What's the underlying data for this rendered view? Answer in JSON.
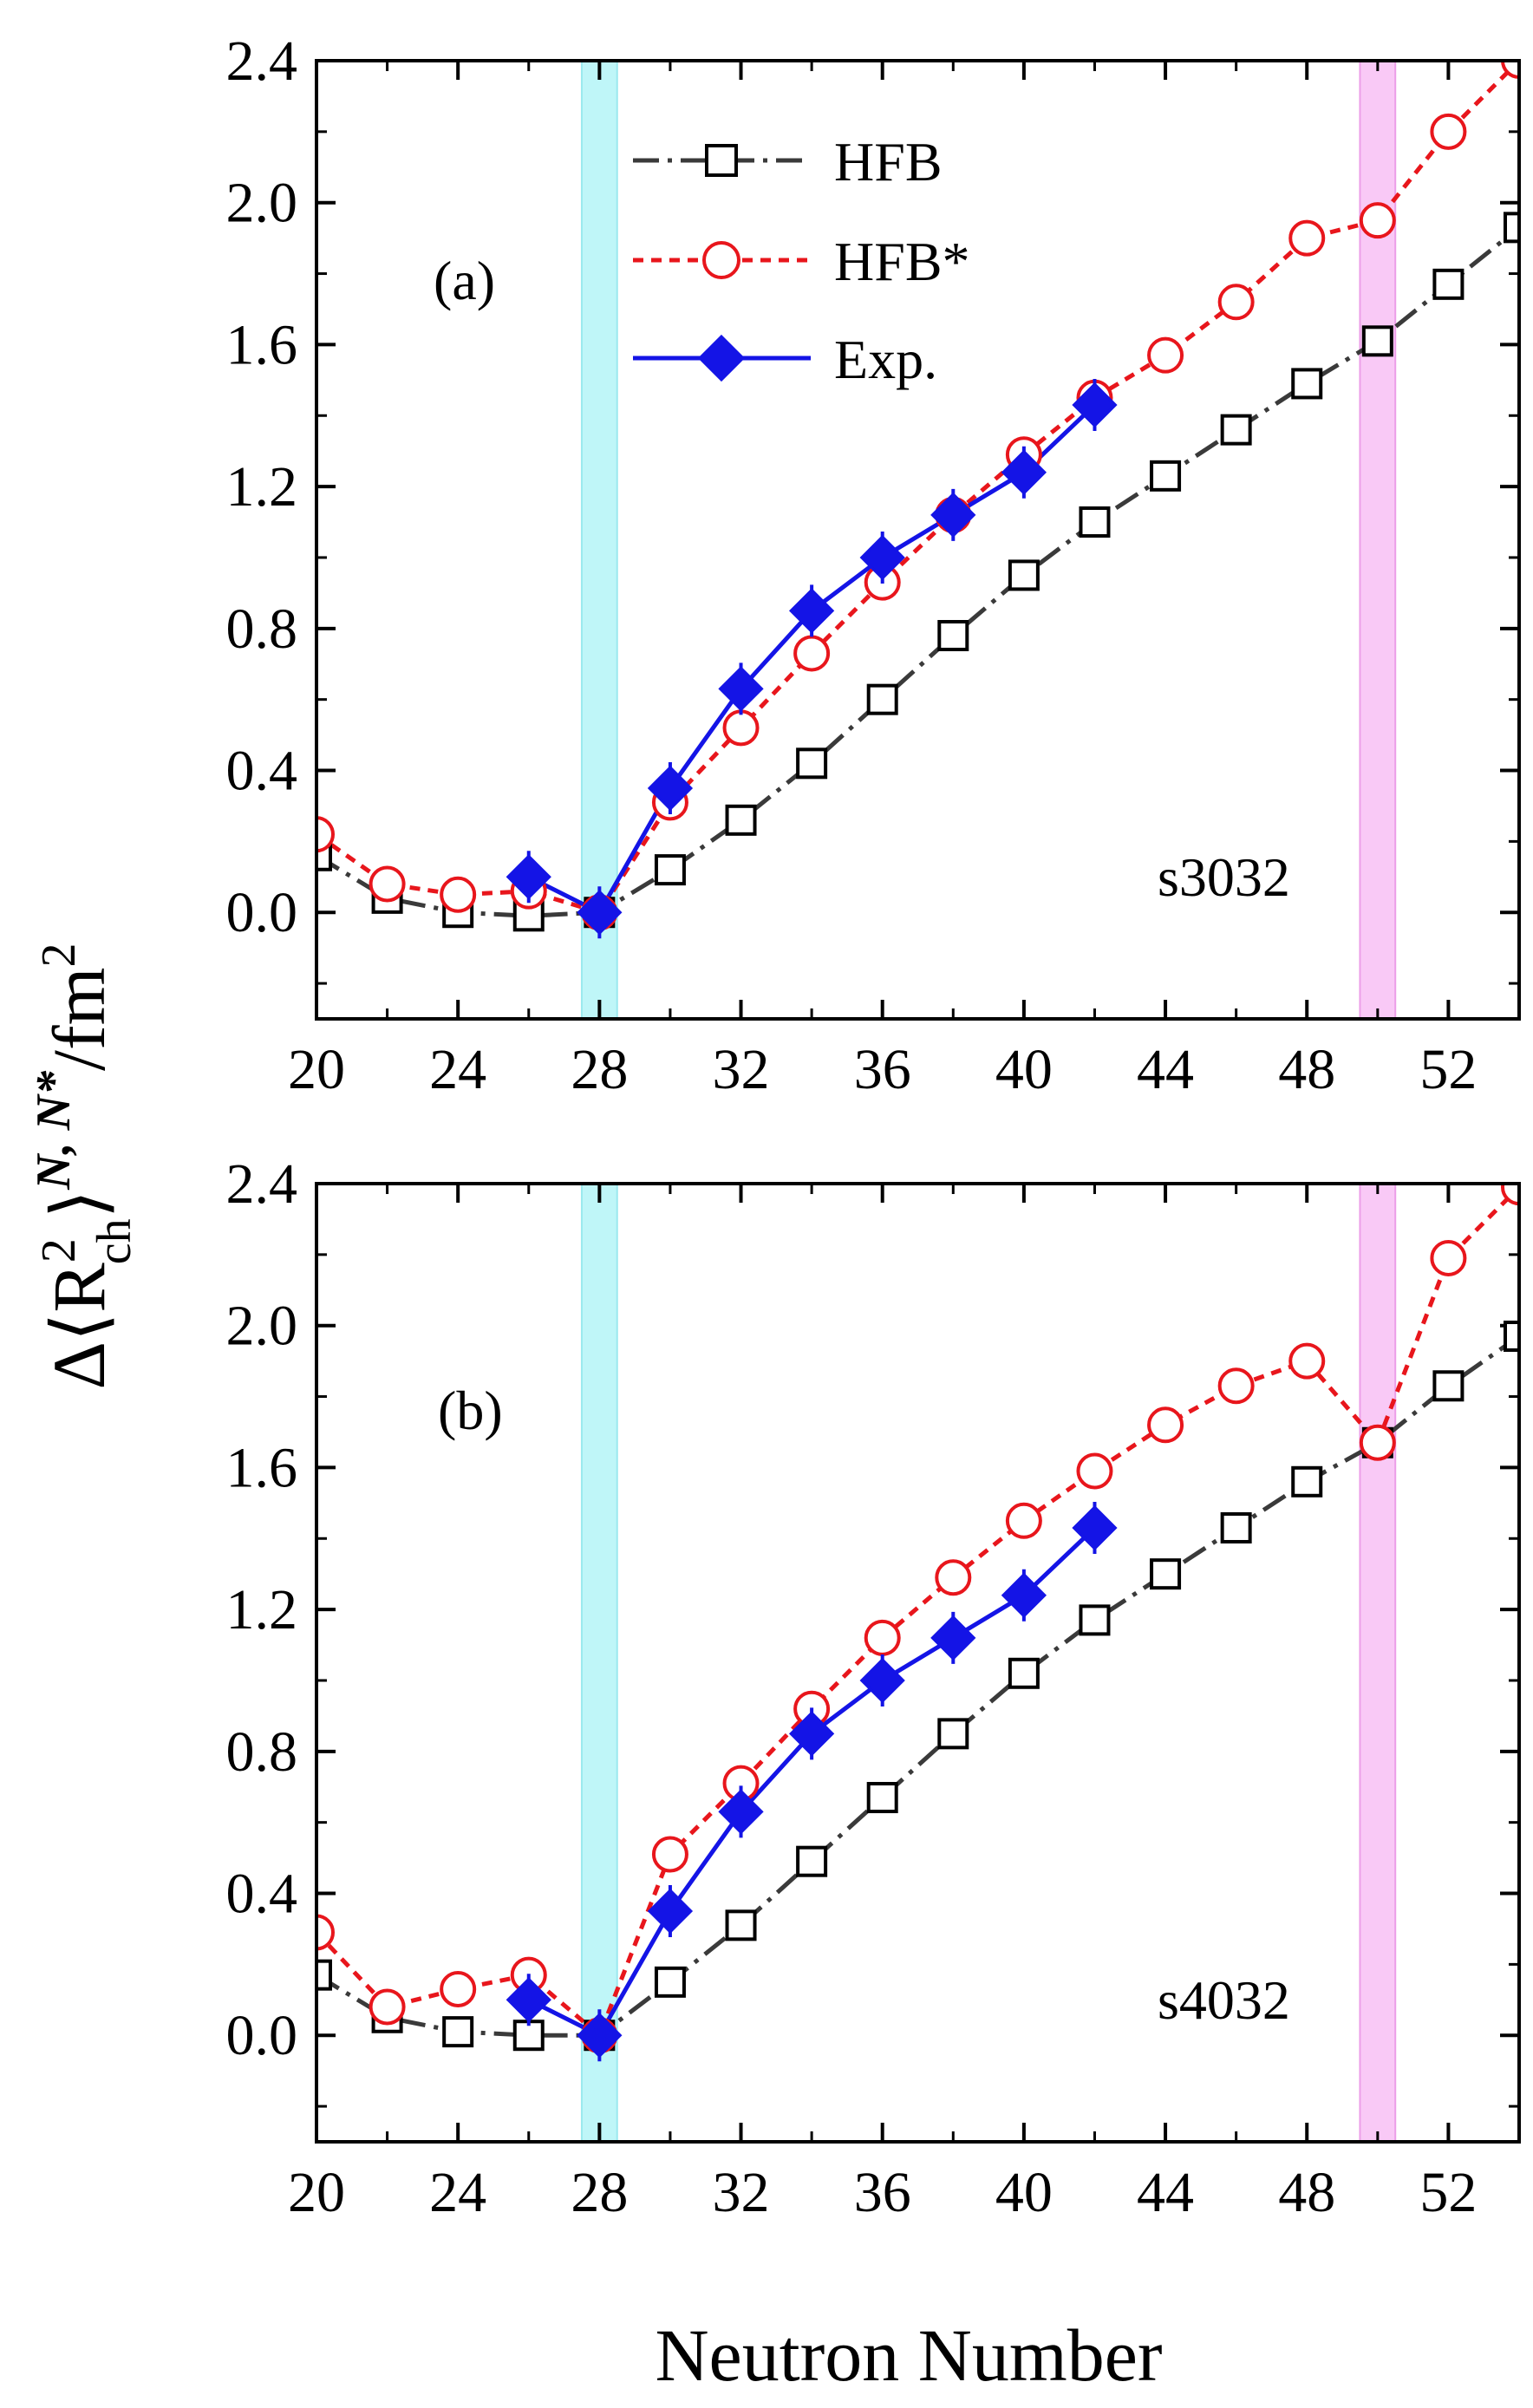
{
  "figure": {
    "xlabel": "Neutron Number",
    "ylabel": {
      "delta": "Δ",
      "open": "⟨",
      "base": "R",
      "sup": "2",
      "sub": "ch",
      "close": "⟩",
      "superscript": "N, N*",
      "unit": "/fm",
      "unit_sup": "2"
    },
    "x_ticks": [
      "20",
      "24",
      "28",
      "32",
      "36",
      "40",
      "44",
      "48",
      "52"
    ],
    "y_ticks": [
      "0.0",
      "0.4",
      "0.8",
      "1.2",
      "1.6",
      "2.0",
      "2.4"
    ]
  },
  "legend": {
    "placement": "top-center of panel (a)",
    "entries": [
      "HFB",
      "HFB*",
      "Exp."
    ]
  },
  "colors": {
    "hfb": "#3a3a3a",
    "hfb_star": "#e8161c",
    "exp": "#1414e6",
    "band_n28": "#bff6f8",
    "band_n50": "#f9c9f6"
  },
  "chart_data": [
    {
      "type": "line",
      "panel_label": "(a)",
      "model_label": "s3032",
      "xlabel": "Neutron Number",
      "xlim": [
        20,
        54
      ],
      "ylim": [
        -0.3,
        2.4
      ],
      "x_ticks": [
        20,
        24,
        28,
        32,
        36,
        40,
        44,
        48,
        52
      ],
      "y_ticks": [
        0.0,
        0.4,
        0.8,
        1.2,
        1.6,
        2.0,
        2.4
      ],
      "shaded_bands": [
        {
          "x": [
            27.5,
            28.5
          ],
          "color": "cyan"
        },
        {
          "x": [
            49.5,
            50.5
          ],
          "color": "magenta"
        }
      ],
      "series": [
        {
          "name": "HFB",
          "marker": "open-square",
          "line": "dash-dot",
          "x": [
            20,
            22,
            24,
            26,
            28,
            30,
            32,
            34,
            36,
            38,
            40,
            42,
            44,
            46,
            48,
            50,
            52,
            54
          ],
          "y": [
            0.16,
            0.04,
            0.0,
            -0.01,
            0.0,
            0.12,
            0.26,
            0.42,
            0.6,
            0.78,
            0.95,
            1.1,
            1.23,
            1.36,
            1.49,
            1.61,
            1.77,
            1.93
          ]
        },
        {
          "name": "HFB*",
          "marker": "open-circle",
          "line": "dashed",
          "x": [
            20,
            22,
            24,
            26,
            28,
            30,
            32,
            34,
            36,
            38,
            40,
            42,
            44,
            46,
            48,
            50,
            52,
            54
          ],
          "y": [
            0.22,
            0.08,
            0.05,
            0.06,
            0.0,
            0.31,
            0.52,
            0.73,
            0.93,
            1.12,
            1.29,
            1.45,
            1.57,
            1.72,
            1.9,
            1.95,
            2.2,
            2.4
          ]
        },
        {
          "name": "Exp.",
          "marker": "filled-diamond",
          "line": "solid",
          "x": [
            26,
            28,
            30,
            32,
            34,
            36,
            38,
            40,
            42
          ],
          "y": [
            0.1,
            0.0,
            0.35,
            0.63,
            0.85,
            1.0,
            1.12,
            1.24,
            1.43
          ]
        }
      ]
    },
    {
      "type": "line",
      "panel_label": "(b)",
      "model_label": "s4032",
      "xlabel": "Neutron Number",
      "xlim": [
        20,
        54
      ],
      "ylim": [
        -0.3,
        2.4
      ],
      "x_ticks": [
        20,
        24,
        28,
        32,
        36,
        40,
        44,
        48,
        52
      ],
      "y_ticks": [
        0.0,
        0.4,
        0.8,
        1.2,
        1.6,
        2.0,
        2.4
      ],
      "shaded_bands": [
        {
          "x": [
            27.5,
            28.5
          ],
          "color": "cyan"
        },
        {
          "x": [
            49.5,
            50.5
          ],
          "color": "magenta"
        }
      ],
      "series": [
        {
          "name": "HFB",
          "marker": "open-square",
          "line": "dash-dot",
          "x": [
            20,
            22,
            24,
            26,
            28,
            30,
            32,
            34,
            36,
            38,
            40,
            42,
            44,
            46,
            48,
            50,
            52,
            54
          ],
          "y": [
            0.17,
            0.05,
            0.01,
            0.0,
            0.0,
            0.15,
            0.31,
            0.49,
            0.67,
            0.85,
            1.02,
            1.17,
            1.3,
            1.43,
            1.56,
            1.67,
            1.83,
            1.97
          ]
        },
        {
          "name": "HFB*",
          "marker": "open-circle",
          "line": "dashed",
          "x": [
            20,
            22,
            24,
            26,
            28,
            30,
            32,
            34,
            36,
            38,
            40,
            42,
            44,
            46,
            48,
            50,
            52,
            54
          ],
          "y": [
            0.29,
            0.08,
            0.13,
            0.17,
            0.0,
            0.51,
            0.71,
            0.92,
            1.12,
            1.29,
            1.45,
            1.59,
            1.72,
            1.83,
            1.9,
            1.67,
            2.19,
            2.39
          ]
        },
        {
          "name": "Exp.",
          "marker": "filled-diamond",
          "line": "solid",
          "x": [
            26,
            28,
            30,
            32,
            34,
            36,
            38,
            40,
            42
          ],
          "y": [
            0.1,
            0.0,
            0.35,
            0.63,
            0.85,
            1.0,
            1.12,
            1.24,
            1.43
          ]
        }
      ]
    }
  ]
}
